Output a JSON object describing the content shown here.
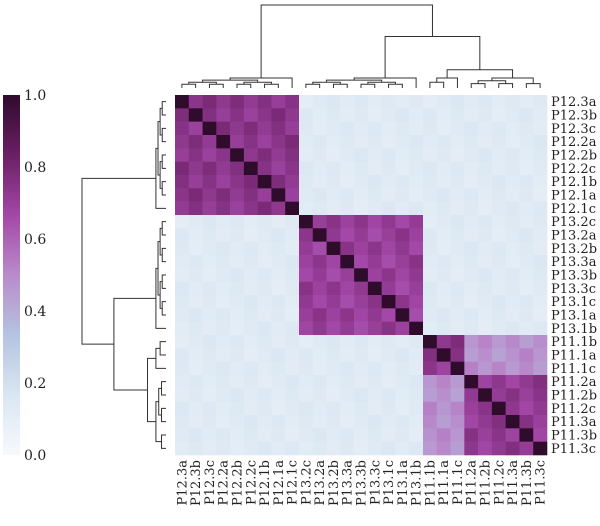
{
  "chart_data": {
    "type": "heatmap",
    "title": "",
    "labels": [
      "P12.3a",
      "P12.3b",
      "P12.3c",
      "P12.2a",
      "P12.2b",
      "P12.2c",
      "P12.1b",
      "P12.1a",
      "P12.1c",
      "P13.2c",
      "P13.2a",
      "P13.2b",
      "P13.3a",
      "P13.3b",
      "P13.3c",
      "P13.1c",
      "P13.1a",
      "P13.1b",
      "P11.1b",
      "P11.1a",
      "P11.1c",
      "P11.2a",
      "P11.2b",
      "P11.2c",
      "P11.3a",
      "P11.3b",
      "P11.3c"
    ],
    "groups": [
      {
        "start": 0,
        "end": 8,
        "within": 0.74
      },
      {
        "start": 9,
        "end": 17,
        "within": 0.7
      },
      {
        "start": 18,
        "end": 20,
        "within": 0.73
      },
      {
        "start": 21,
        "end": 26,
        "within": 0.72
      }
    ],
    "cross_values": {
      "P11.1_x_P11.2_P11.3": 0.48,
      "between_clusters": 0.13
    },
    "diagonal": 1.0,
    "colorbar": {
      "ticks": [
        "0.0",
        "0.2",
        "0.4",
        "0.6",
        "0.8",
        "1.0"
      ],
      "range": [
        0.0,
        1.0
      ],
      "colors": [
        "#f7f9fc",
        "#d9e6f2",
        "#b4c4e0",
        "#b98bcb",
        "#a347a7",
        "#6b1f64",
        "#2f0b2c"
      ]
    },
    "legend_position": "left",
    "grid": false
  }
}
